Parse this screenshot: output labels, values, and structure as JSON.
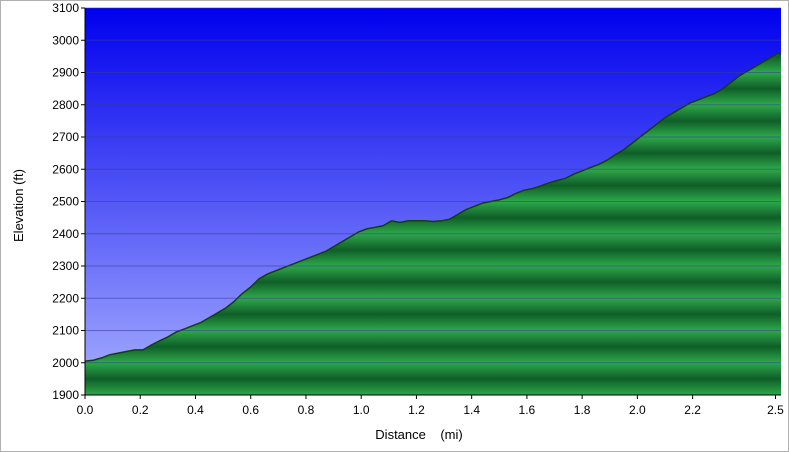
{
  "chart_data": {
    "type": "area",
    "xlabel": "Distance    (mi)",
    "ylabel": "Elevation (ft)",
    "xlim": [
      0,
      2.52
    ],
    "ylim": [
      1900,
      3100
    ],
    "x_ticks": [
      "0.0",
      "0.2",
      "0.4",
      "0.6",
      "0.8",
      "1.0",
      "1.2",
      "1.4",
      "1.6",
      "1.8",
      "2.0",
      "2.2",
      "2.5"
    ],
    "x_tick_values": [
      0.0,
      0.2,
      0.4,
      0.6,
      0.8,
      1.0,
      1.2,
      1.4,
      1.6,
      1.8,
      2.0,
      2.2,
      2.5
    ],
    "y_ticks": [
      "1900",
      "2000",
      "2100",
      "2200",
      "2300",
      "2400",
      "2500",
      "2600",
      "2700",
      "2800",
      "2900",
      "3000",
      "3100"
    ],
    "y_tick_values": [
      1900,
      2000,
      2100,
      2200,
      2300,
      2400,
      2500,
      2600,
      2700,
      2800,
      2900,
      3000,
      3100
    ],
    "grid": true,
    "colors": {
      "sky_top": "#0000ee",
      "sky_bottom": "#a8b0ff",
      "fill_light": "#2ea84a",
      "fill_dark": "#0f5e28",
      "outline": "#1a3a1a",
      "grid": "#3a3a9a"
    },
    "series": [
      {
        "x": [
          0.0,
          0.03,
          0.06,
          0.09,
          0.12,
          0.15,
          0.18,
          0.21,
          0.24,
          0.27,
          0.3,
          0.33,
          0.36,
          0.39,
          0.42,
          0.45,
          0.48,
          0.51,
          0.54,
          0.57,
          0.6,
          0.63,
          0.66,
          0.69,
          0.72,
          0.75,
          0.78,
          0.81,
          0.84,
          0.87,
          0.9,
          0.93,
          0.96,
          0.99,
          1.02,
          1.05,
          1.08,
          1.11,
          1.14,
          1.17,
          1.2,
          1.23,
          1.26,
          1.29,
          1.32,
          1.35,
          1.38,
          1.41,
          1.44,
          1.47,
          1.5,
          1.53,
          1.56,
          1.59,
          1.62,
          1.65,
          1.68,
          1.71,
          1.74,
          1.77,
          1.8,
          1.83,
          1.86,
          1.89,
          1.92,
          1.95,
          1.98,
          2.01,
          2.04,
          2.07,
          2.1,
          2.13,
          2.16,
          2.19,
          2.22,
          2.25,
          2.28,
          2.31,
          2.34,
          2.37,
          2.4,
          2.43,
          2.46,
          2.49,
          2.51,
          2.52
        ],
        "values": [
          2005,
          2008,
          2015,
          2025,
          2030,
          2035,
          2040,
          2040,
          2055,
          2068,
          2080,
          2095,
          2105,
          2115,
          2125,
          2140,
          2155,
          2170,
          2190,
          2215,
          2235,
          2260,
          2275,
          2285,
          2295,
          2305,
          2315,
          2325,
          2335,
          2345,
          2360,
          2375,
          2390,
          2405,
          2415,
          2420,
          2425,
          2440,
          2435,
          2440,
          2440,
          2440,
          2438,
          2440,
          2445,
          2460,
          2475,
          2485,
          2495,
          2500,
          2505,
          2512,
          2525,
          2535,
          2540,
          2548,
          2558,
          2565,
          2572,
          2585,
          2595,
          2605,
          2615,
          2628,
          2645,
          2660,
          2680,
          2700,
          2720,
          2740,
          2760,
          2775,
          2790,
          2805,
          2815,
          2825,
          2835,
          2850,
          2870,
          2890,
          2905,
          2920,
          2935,
          2950,
          2960,
          2955
        ]
      }
    ]
  }
}
